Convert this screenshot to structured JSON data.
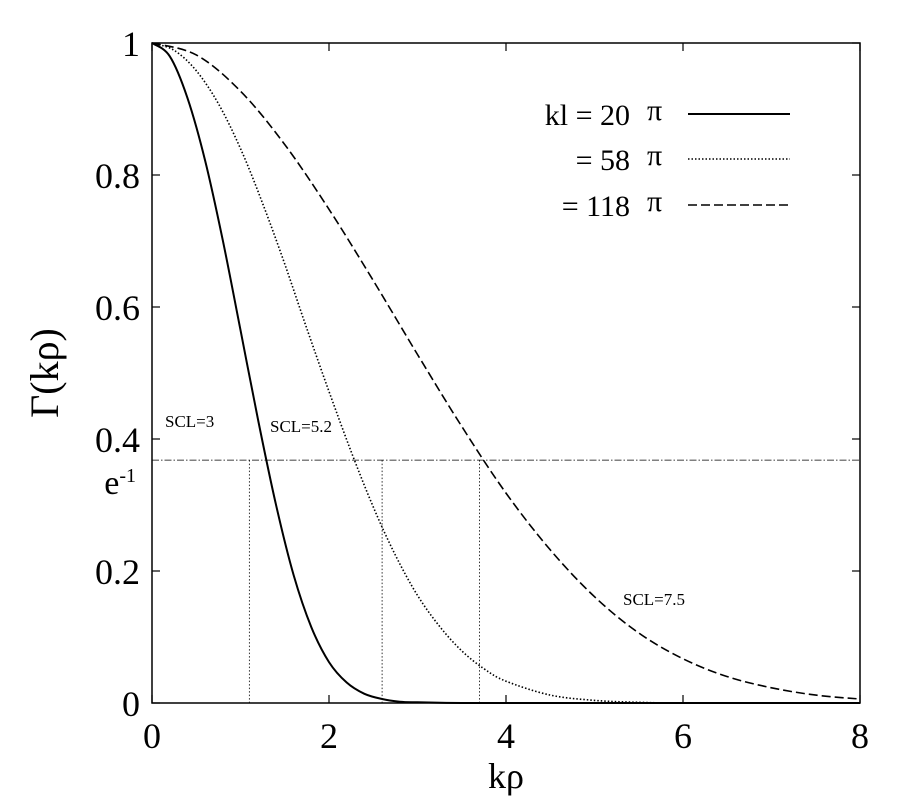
{
  "chart_data": {
    "type": "line",
    "title": "",
    "xlabel": "kρ",
    "ylabel": "Γ(kρ)",
    "xlim": [
      0,
      8
    ],
    "ylim": [
      0,
      1
    ],
    "x_ticks": [
      "0",
      "2",
      "4",
      "6",
      "8"
    ],
    "y_ticks": [
      "0",
      "0.2",
      "0.4",
      "0.6",
      "0.8",
      "1"
    ],
    "grid": false,
    "legend_position": "top-right",
    "series": [
      {
        "name": "kl = 20 π",
        "style": "solid",
        "points": [
          [
            0,
            1.0
          ],
          [
            0.2,
            0.98
          ],
          [
            0.4,
            0.917
          ],
          [
            0.6,
            0.822
          ],
          [
            0.8,
            0.701
          ],
          [
            1.0,
            0.565
          ],
          [
            1.2,
            0.428
          ],
          [
            1.4,
            0.301
          ],
          [
            1.6,
            0.194
          ],
          [
            1.8,
            0.115
          ],
          [
            2.0,
            0.062
          ],
          [
            2.2,
            0.031
          ],
          [
            2.4,
            0.014
          ],
          [
            2.6,
            0.006
          ],
          [
            2.8,
            0.002
          ],
          [
            3.0,
            0.001
          ],
          [
            3.5,
            0.0
          ],
          [
            4.0,
            0.0
          ],
          [
            5.0,
            0.0
          ],
          [
            6.0,
            0.0
          ],
          [
            7.0,
            0.0
          ],
          [
            8.0,
            0.0
          ]
        ]
      },
      {
        "name": "= 58 π",
        "style": "dotted",
        "points": [
          [
            0,
            1.0
          ],
          [
            0.25,
            0.989
          ],
          [
            0.5,
            0.958
          ],
          [
            0.75,
            0.908
          ],
          [
            1.0,
            0.84
          ],
          [
            1.25,
            0.757
          ],
          [
            1.5,
            0.665
          ],
          [
            1.75,
            0.567
          ],
          [
            2.0,
            0.472
          ],
          [
            2.25,
            0.381
          ],
          [
            2.5,
            0.297
          ],
          [
            2.75,
            0.224
          ],
          [
            3.0,
            0.163
          ],
          [
            3.25,
            0.116
          ],
          [
            3.5,
            0.079
          ],
          [
            3.75,
            0.052
          ],
          [
            4.0,
            0.033
          ],
          [
            4.5,
            0.012
          ],
          [
            5.0,
            0.004
          ],
          [
            5.5,
            0.001
          ],
          [
            6.0,
            0.0
          ],
          [
            7.0,
            0.0
          ],
          [
            8.0,
            0.0
          ]
        ]
      },
      {
        "name": "= 118 π",
        "style": "dashed",
        "points": [
          [
            0,
            1.0
          ],
          [
            0.5,
            0.982
          ],
          [
            1.0,
            0.927
          ],
          [
            1.5,
            0.846
          ],
          [
            2.0,
            0.748
          ],
          [
            2.5,
            0.64
          ],
          [
            3.0,
            0.528
          ],
          [
            3.5,
            0.419
          ],
          [
            4.0,
            0.318
          ],
          [
            4.5,
            0.232
          ],
          [
            5.0,
            0.161
          ],
          [
            5.5,
            0.106
          ],
          [
            6.0,
            0.067
          ],
          [
            6.5,
            0.04
          ],
          [
            7.0,
            0.023
          ],
          [
            7.5,
            0.012
          ],
          [
            8.0,
            0.006
          ]
        ]
      }
    ],
    "reference_line": {
      "label": "e",
      "superscript": "-1",
      "y": 0.368
    },
    "markers": [
      {
        "label": "SCL=3",
        "x": 1.1
      },
      {
        "label": "SCL=5.2",
        "x": 2.6
      },
      {
        "label": "SCL=7.5",
        "x": 3.7
      }
    ]
  }
}
